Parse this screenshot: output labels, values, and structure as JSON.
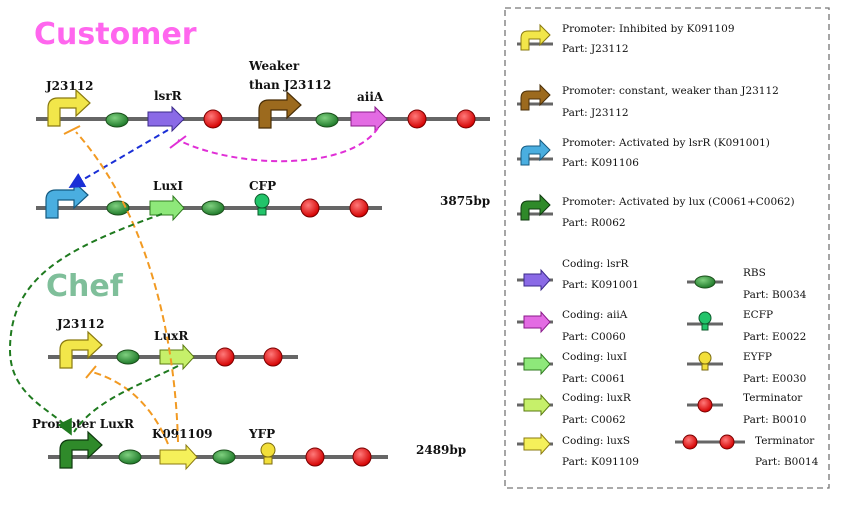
{
  "sections": {
    "customer": "Customer",
    "chef": "Chef"
  },
  "row1": {
    "j23112": "J23112",
    "lsrr": "lsrR",
    "weaker_line1": "Weaker",
    "weaker_line2": "than J23112",
    "aiia": "aiiA"
  },
  "row2": {
    "luxi": "LuxI",
    "cfp": "CFP",
    "size": "3875bp"
  },
  "row3": {
    "j23112": "J23112",
    "luxr": "LuxR"
  },
  "row4": {
    "promoter_luxr": "Promoter LuxR",
    "k091109": "K091109",
    "yfp": "YFP",
    "size": "2489bp"
  },
  "legend": {
    "promoters": [
      {
        "desc": "Promoter: Inhibited by K091109",
        "part": "Part: J23112",
        "color": "#f2e64a"
      },
      {
        "desc": "Promoter: constant, weaker than J23112",
        "part": "Part: J23112",
        "color": "#9c6a1e"
      },
      {
        "desc": "Promoter: Activated by lsrR (K091001)",
        "part": "Part: K091106",
        "color": "#4aaee0"
      },
      {
        "desc": "Promoter: Activated by lux (C0061+C0062)",
        "part": "Part: R0062",
        "color": "#2f8a2a"
      }
    ],
    "coding": [
      {
        "desc": "Coding: lsrR",
        "part": "Part: K091001",
        "color": "#8a6ae6"
      },
      {
        "desc": "Coding: aiiA",
        "part": "Part: C0060",
        "color": "#e36be3"
      },
      {
        "desc": "Coding: luxI",
        "part": "Part: C0061",
        "color": "#8ee87a"
      },
      {
        "desc": "Coding: luxR",
        "part": "Part: C0062",
        "color": "#c6f06a"
      },
      {
        "desc": "Coding: luxS",
        "part": "Part: K091109",
        "color": "#f5f05a"
      }
    ],
    "others": [
      {
        "desc": "RBS",
        "part": "Part: B0034"
      },
      {
        "desc": "ECFP",
        "part": "Part: E0022"
      },
      {
        "desc": "EYFP",
        "part": "Part: E0030"
      },
      {
        "desc": "Terminator",
        "part": "Part: B0010"
      },
      {
        "desc": "Terminator",
        "part": "Part: B0014"
      }
    ]
  }
}
